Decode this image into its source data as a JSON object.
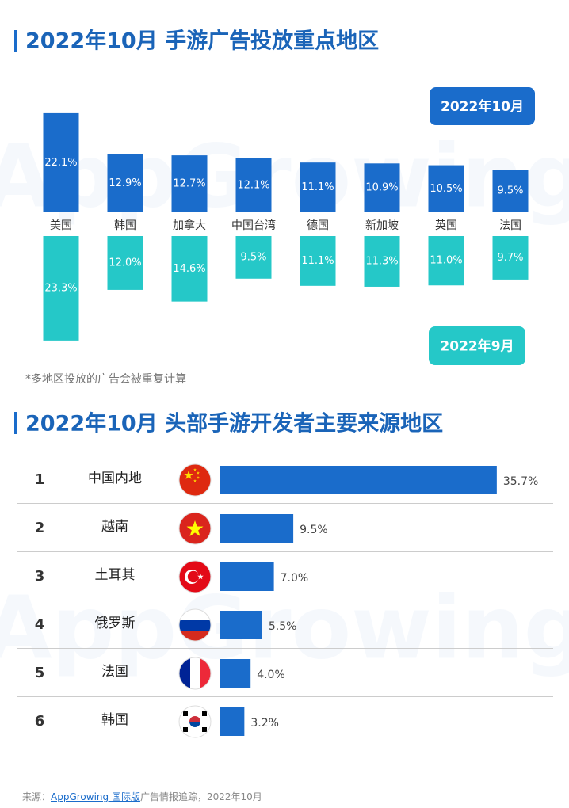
{
  "chart_data": [
    {
      "type": "diverging-bar",
      "title": "2022年10月 手游广告投放重点地区",
      "categories": [
        "美国",
        "韩国",
        "加拿大",
        "中国台湾",
        "德国",
        "新加坡",
        "英国",
        "法国"
      ],
      "series": [
        {
          "name": "2022年10月",
          "color": "#1a6ccb",
          "values": [
            22.1,
            12.9,
            12.7,
            12.1,
            11.1,
            10.9,
            10.5,
            9.5
          ],
          "value_labels": [
            "22.1%",
            "12.9%",
            "12.7%",
            "12.1%",
            "11.1%",
            "10.9%",
            "10.5%",
            "9.5%"
          ]
        },
        {
          "name": "2022年9月",
          "color": "#25c8c8",
          "values": [
            23.3,
            12.0,
            14.6,
            9.5,
            11.1,
            11.3,
            11.0,
            9.7
          ],
          "value_labels": [
            "23.3%",
            "12.0%",
            "14.6%",
            "9.5%",
            "11.1%",
            "11.3%",
            "11.0%",
            "9.7%"
          ]
        }
      ],
      "note": "*多地区投放的广告会被重复计算"
    },
    {
      "type": "hbar",
      "title": "2022年10月 头部手游开发者主要来源地区",
      "ranks": [
        "1",
        "2",
        "3",
        "4",
        "5",
        "6"
      ],
      "categories": [
        "中国内地",
        "越南",
        "土耳其",
        "俄罗斯",
        "法国",
        "韩国"
      ],
      "values": [
        35.7,
        9.5,
        7.0,
        5.5,
        4.0,
        3.2
      ],
      "value_labels": [
        "35.7%",
        "9.5%",
        "7.0%",
        "5.5%",
        "4.0%",
        "3.2%"
      ],
      "color": "#1a6ccb"
    }
  ],
  "watermark": "AppGrowing",
  "source": {
    "prefix": "来源：",
    "link": "AppGrowing 国际版",
    "suffix": "广告情报追踪，2022年10月"
  }
}
